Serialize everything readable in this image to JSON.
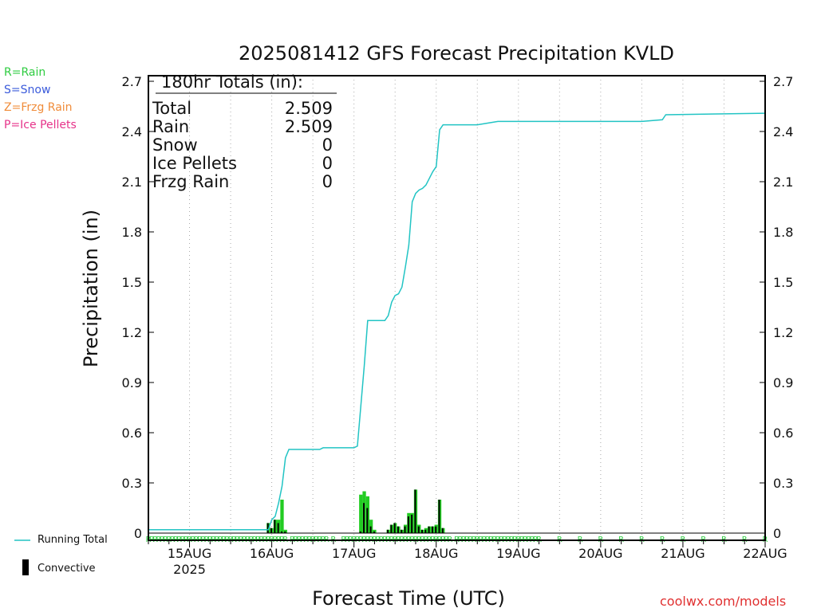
{
  "legend_types": [
    {
      "label": "R=Rain",
      "color": "#2ecc40"
    },
    {
      "label": "S=Snow",
      "color": "#3b5bdb"
    },
    {
      "label": "Z=Frzg Rain",
      "color": "#f08c3a"
    },
    {
      "label": "P=Ice Pellets",
      "color": "#e6338a"
    }
  ],
  "totals_box": {
    "header": "180hr Totals (in):",
    "rows": [
      {
        "label": "Total",
        "value": "2.509"
      },
      {
        "label": "Rain",
        "value": "2.509"
      },
      {
        "label": "Snow",
        "value": "0"
      },
      {
        "label": "Ice Pellets",
        "value": "0"
      },
      {
        "label": "Frzg Rain",
        "value": "0"
      }
    ]
  },
  "bottom_legend": {
    "running_total": "Running Total",
    "convective": "Convective"
  },
  "credit": "coolwx.com/models",
  "colors": {
    "running_total": "#22c4c4",
    "rain": "#22cc22",
    "convective": "#000000",
    "rain_marker": "#2ecc40",
    "credit": "#e03030"
  },
  "chart_data": {
    "type": "bar",
    "title": "2025081412 GFS Forecast Precipitation KVLD",
    "xlabel": "Forecast Time (UTC)",
    "ylabel": "Precipitation (in)",
    "ylim": [
      0,
      2.8
    ],
    "yticks": [
      "0",
      "0.3",
      "0.6",
      "0.9",
      "1.2",
      "1.5",
      "1.8",
      "2.1",
      "2.4",
      "2.7"
    ],
    "x_unit": "forecast hour",
    "xlim": [
      0,
      180
    ],
    "xtick_hours": [
      12,
      36,
      60,
      84,
      108,
      132,
      156,
      180
    ],
    "xtick_labels": [
      "15AUG",
      "16AUG",
      "17AUG",
      "18AUG",
      "19AUG",
      "20AUG",
      "21AUG",
      "22AUG"
    ],
    "xtick_sublabel": "2025",
    "running_total": {
      "name": "Running Total",
      "x": [
        0,
        1,
        35,
        36,
        37,
        38,
        39,
        40,
        41,
        42,
        50,
        51,
        60,
        61,
        62,
        63,
        64,
        65,
        66,
        67,
        68,
        69,
        70,
        71,
        72,
        73,
        74,
        75,
        76,
        77,
        78,
        79,
        80,
        81,
        82,
        83,
        84,
        85,
        86,
        87,
        96,
        99,
        102,
        108,
        144,
        150,
        151,
        180
      ],
      "y": [
        0.02,
        0.02,
        0.02,
        0.08,
        0.1,
        0.18,
        0.28,
        0.45,
        0.5,
        0.5,
        0.5,
        0.51,
        0.51,
        0.52,
        0.76,
        1.0,
        1.27,
        1.27,
        1.27,
        1.27,
        1.27,
        1.27,
        1.3,
        1.38,
        1.42,
        1.43,
        1.47,
        1.59,
        1.72,
        1.98,
        2.03,
        2.05,
        2.06,
        2.08,
        2.12,
        2.16,
        2.19,
        2.41,
        2.44,
        2.44,
        2.44,
        2.45,
        2.46,
        2.46,
        2.46,
        2.47,
        2.5,
        2.509
      ]
    },
    "precip_bars": {
      "name": "Precipitation",
      "x": [
        35,
        36,
        37,
        38,
        39,
        40,
        62,
        63,
        64,
        65,
        66,
        70,
        71,
        72,
        73,
        74,
        75,
        76,
        77,
        78,
        79,
        80,
        81,
        82,
        83,
        84,
        85,
        86
      ],
      "total": [
        0.06,
        0.03,
        0.08,
        0.08,
        0.2,
        0.02,
        0.23,
        0.25,
        0.22,
        0.08,
        0.02,
        0.02,
        0.05,
        0.06,
        0.04,
        0.02,
        0.05,
        0.12,
        0.12,
        0.26,
        0.05,
        0.02,
        0.03,
        0.04,
        0.04,
        0.05,
        0.2,
        0.03
      ],
      "convective": [
        0.06,
        0.03,
        0.08,
        0.06,
        0.01,
        0.01,
        0.01,
        0.18,
        0.15,
        0.04,
        0.01,
        0.02,
        0.05,
        0.06,
        0.04,
        0.02,
        0.04,
        0.1,
        0.11,
        0.26,
        0.04,
        0.02,
        0.02,
        0.04,
        0.04,
        0.04,
        0.2,
        0.03
      ]
    },
    "rain_marker_hours": [
      0,
      1,
      2,
      3,
      4,
      5,
      6,
      7,
      8,
      9,
      10,
      11,
      12,
      13,
      14,
      15,
      16,
      17,
      18,
      19,
      20,
      21,
      22,
      23,
      24,
      25,
      26,
      27,
      28,
      29,
      30,
      31,
      32,
      33,
      34,
      35,
      36,
      37,
      38,
      39,
      40,
      42,
      43,
      44,
      45,
      46,
      47,
      48,
      49,
      50,
      51,
      52,
      54,
      57,
      58,
      59,
      60,
      61,
      62,
      63,
      64,
      65,
      66,
      67,
      68,
      69,
      70,
      71,
      72,
      73,
      74,
      75,
      76,
      77,
      78,
      79,
      80,
      81,
      82,
      83,
      84,
      85,
      86,
      87,
      88,
      90,
      91,
      92,
      93,
      94,
      95,
      96,
      97,
      98,
      99,
      100,
      101,
      102,
      103,
      104,
      105,
      106,
      107,
      108,
      109,
      110,
      111,
      112,
      113,
      114,
      120,
      126,
      132,
      138,
      144,
      150,
      156,
      162,
      168,
      174,
      180
    ]
  }
}
